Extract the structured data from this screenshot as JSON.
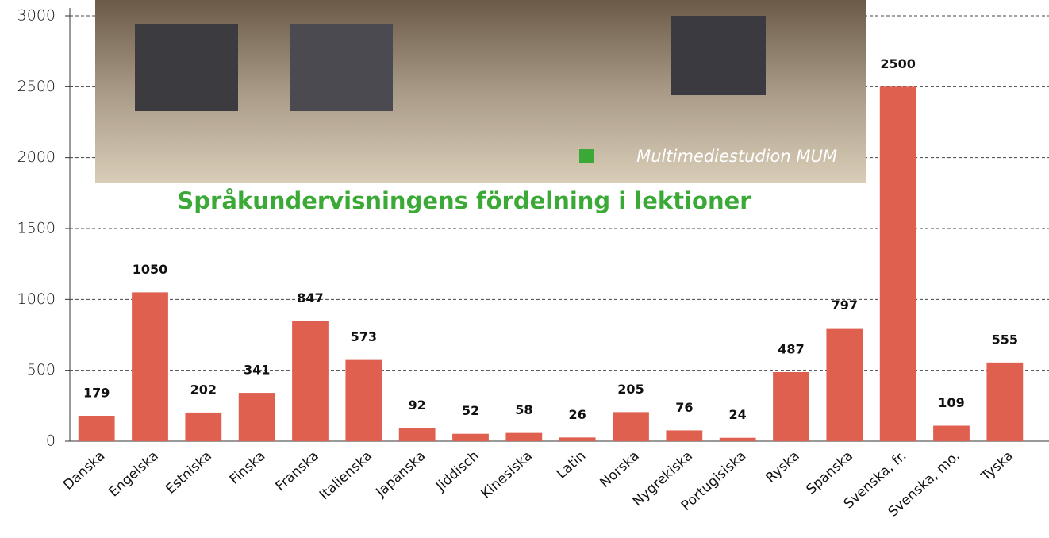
{
  "chart_data": {
    "type": "bar",
    "title": "Språkundervisningens fördelning i lektioner",
    "photo_caption": "Multimediestudion MUM",
    "categories": [
      "Danska",
      "Engelska",
      "Estniska",
      "Finska",
      "Franska",
      "Italienska",
      "Japanska",
      "Jiddisch",
      "Kinesiska",
      "Latin",
      "Norska",
      "Nygrekiska",
      "Portugisiska",
      "Ryska",
      "Spanska",
      "Svenska, fr.",
      "Svenska, mo.",
      "Tyska"
    ],
    "values": [
      179,
      1050,
      202,
      341,
      847,
      573,
      92,
      52,
      58,
      26,
      205,
      76,
      24,
      487,
      797,
      2500,
      109,
      555
    ],
    "color": "#e06050",
    "ylim": [
      0,
      3000
    ],
    "yticks": [
      0,
      500,
      1000,
      1500,
      2000,
      2500,
      3000
    ],
    "grid": true
  }
}
